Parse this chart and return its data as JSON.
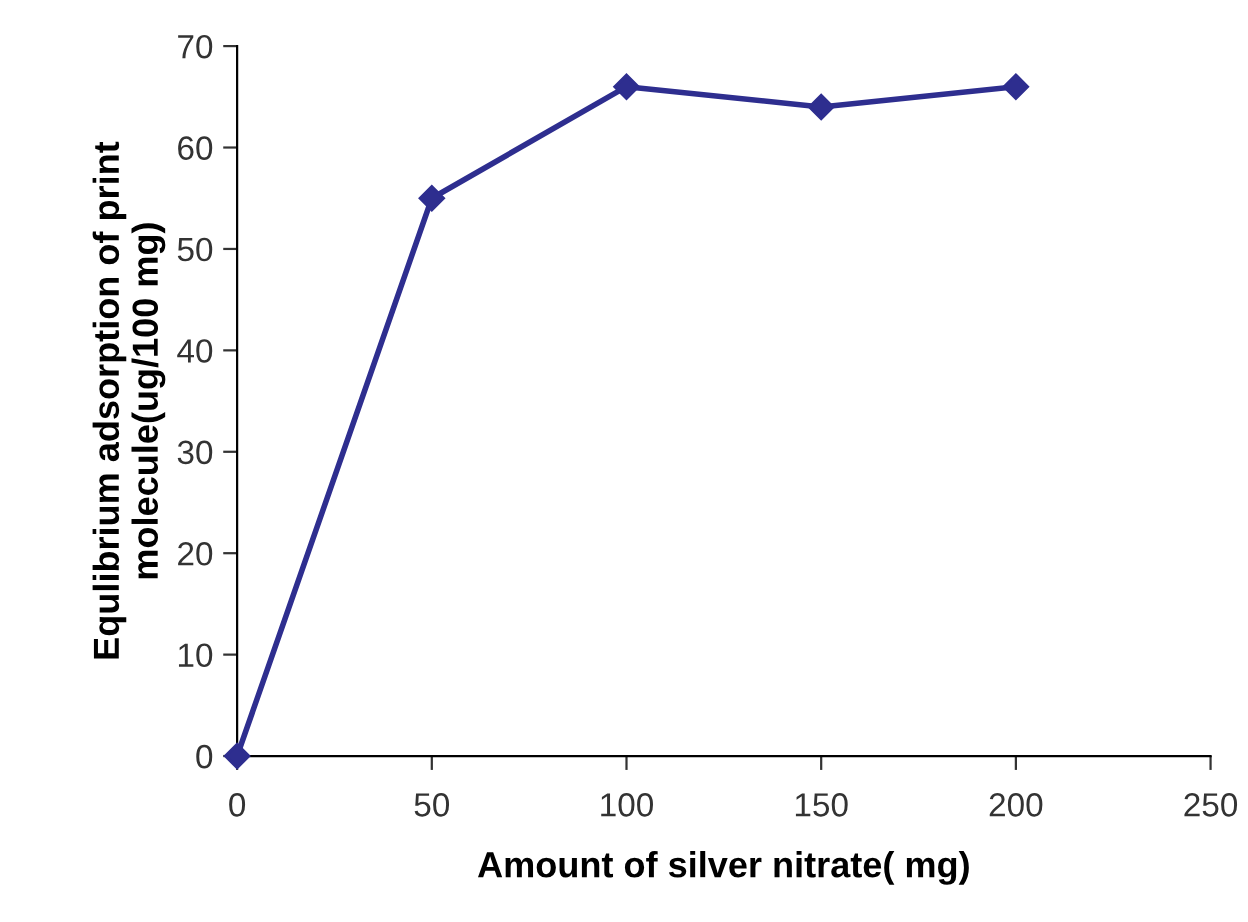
{
  "chart_data": {
    "type": "line",
    "xlabel": "Amount of silver nitrate( mg)",
    "ylabel": "Equlibrium adsorption of print\nmolecule(ug/100 mg)",
    "x": [
      0,
      50,
      100,
      150,
      200
    ],
    "series": [
      {
        "color": "#2e2e8f",
        "values": [
          0,
          55,
          66,
          64,
          66
        ]
      }
    ],
    "xlim": [
      0,
      250
    ],
    "xticks": [
      0,
      50,
      100,
      150,
      200,
      250
    ],
    "ylim": [
      0,
      70
    ],
    "yticks": [
      0,
      10,
      20,
      30,
      40,
      50,
      60,
      70
    ],
    "marker": "diamond",
    "line_style": "solid"
  }
}
